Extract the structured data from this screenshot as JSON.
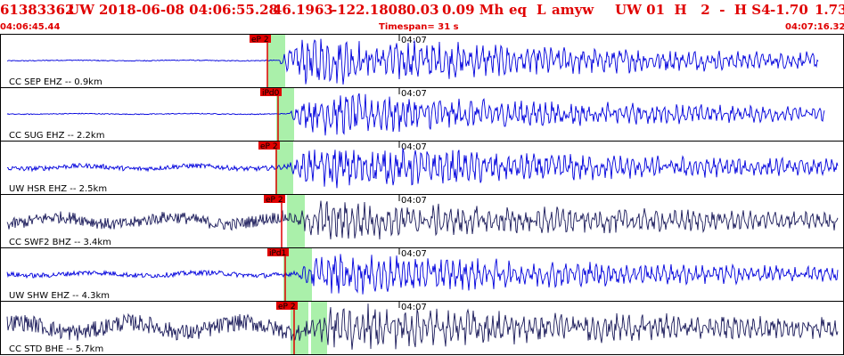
{
  "header": {
    "event_id": "61383362",
    "network": "UW",
    "datetime": "2018-06-08 04:06:55.28",
    "lat": "46.1963",
    "lon": "-122.1808",
    "depth": "0.03",
    "magnitude": "0.09 Mh",
    "type": "eq",
    "location_code": "L",
    "author": "amyw",
    "quality_block": "UW 01  H   2  -  H S4",
    "value1": "-1.70",
    "value2": "1.73"
  },
  "subheader": {
    "start_time": "04:06:45.44",
    "timespan": "Timespan=  31 s",
    "end_time": "04:07:16.32"
  },
  "colors": {
    "header": "#e00000",
    "trace_blue": "#0000dd",
    "trace_dark": "#1a1a5a",
    "pick_red": "#e00000",
    "highlight_green": "#aaf0aa"
  },
  "tick_label": "04:07",
  "traces": [
    {
      "label": "CC SEP EHZ -- 0.9km",
      "pick": "eP 2",
      "color": "blue",
      "onset": 0.22,
      "amp": 0.9,
      "noise": 0.02
    },
    {
      "label": "CC SUG EHZ -- 2.2km",
      "pick": "iPd0",
      "color": "blue",
      "onset": 0.26,
      "amp": 0.75,
      "noise": 0.02
    },
    {
      "label": "UW HSR EHZ -- 2.5km",
      "pick": "eP 2",
      "color": "blue",
      "onset": 0.3,
      "amp": 0.75,
      "noise": 0.1
    },
    {
      "label": "CC SWF2 BHZ -- 3.4km",
      "pick": "eP 2",
      "color": "dark",
      "onset": 0.33,
      "amp": 0.6,
      "noise": 0.25
    },
    {
      "label": "UW SHW EHZ -- 4.3km",
      "pick": "iPd1",
      "color": "blue",
      "onset": 0.37,
      "amp": 0.7,
      "noise": 0.1
    },
    {
      "label": "CC STD BHE -- 5.7km",
      "pick": "eP 2",
      "color": "dark",
      "onset": 0.42,
      "amp": 0.7,
      "noise": 0.35
    }
  ]
}
